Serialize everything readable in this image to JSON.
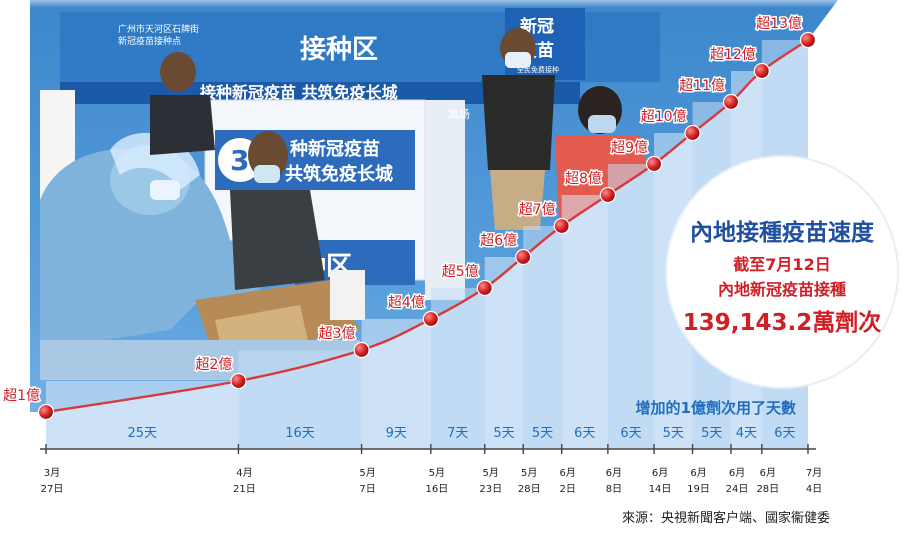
{
  "colors": {
    "line": "#d63a3a",
    "label": "#d11f26",
    "area_fill": "#bcd9f3",
    "band_light": "#dbeafa",
    "band_dark": "#c4dcf4",
    "days_text": "#1f6fbd",
    "title_blue": "#1f4fa0",
    "axis": "#444444"
  },
  "photo_scene": {
    "banner_text": "接种区",
    "banner_small": "广州市天河区石牌街\n新冠疫苗接种点",
    "sign_text": "新冠\n疫苗",
    "sign_small": "全民免费接种",
    "slogan": "接种新冠疫苗 共筑免疫长城",
    "board_text": "种新冠疫苗",
    "board_text2": "共筑免疫长城",
    "board_number": "3",
    "exit_text": "离场",
    "lower_text": "种区"
  },
  "info": {
    "title": "內地接種疫苗速度",
    "line1": "截至7月12日",
    "line2": "內地新冠疫苗接種",
    "line3": "139,143.2萬劑次"
  },
  "days_heading": "增加的1億劑次用了天數",
  "source": "來源：央視新聞客户端、國家衞健委",
  "chart_data": {
    "type": "line",
    "title": "內地接種疫苗速度",
    "x": [
      "3月27日",
      "4月21日",
      "5月7日",
      "5月16日",
      "5月23日",
      "5月28日",
      "6月2日",
      "6月8日",
      "6月14日",
      "6月19日",
      "6月24日",
      "6月28日",
      "7月4日"
    ],
    "x_labels": [
      {
        "month": "3月",
        "day": "27日"
      },
      {
        "month": "4月",
        "day": "21日"
      },
      {
        "month": "5月",
        "day": "7日"
      },
      {
        "month": "5月",
        "day": "16日"
      },
      {
        "month": "5月",
        "day": "23日"
      },
      {
        "month": "5月",
        "day": "28日"
      },
      {
        "month": "6月",
        "day": "2日"
      },
      {
        "month": "6月",
        "day": "8日"
      },
      {
        "month": "6月",
        "day": "14日"
      },
      {
        "month": "6月",
        "day": "19日"
      },
      {
        "month": "6月",
        "day": "24日"
      },
      {
        "month": "6月",
        "day": "28日"
      },
      {
        "month": "7月",
        "day": "4日"
      }
    ],
    "values": [
      1,
      2,
      3,
      4,
      5,
      6,
      7,
      8,
      9,
      10,
      11,
      12,
      13
    ],
    "point_labels": [
      "超1億",
      "超2億",
      "超3億",
      "超4億",
      "超5億",
      "超6億",
      "超7億",
      "超8億",
      "超9億",
      "超10億",
      "超11億",
      "超12億",
      "超13億"
    ],
    "days_between": [
      "25天",
      "16天",
      "9天",
      "7天",
      "5天",
      "5天",
      "6天",
      "6天",
      "5天",
      "5天",
      "4天",
      "6天"
    ],
    "unit": "億劑次"
  }
}
